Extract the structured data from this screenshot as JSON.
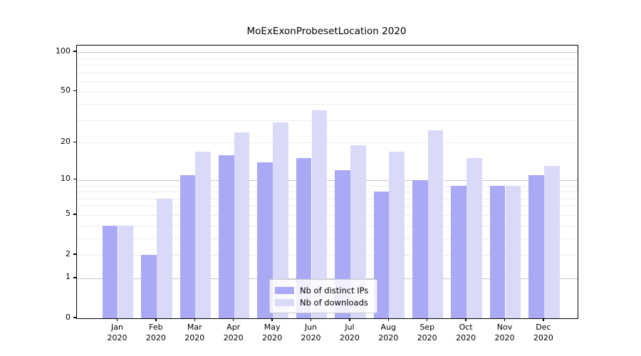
{
  "title": "MoExExonProbesetLocation 2020",
  "legend": {
    "items": [
      {
        "label": "Nb of distinct IPs",
        "series_key": "ips"
      },
      {
        "label": "Nb of downloads",
        "series_key": "downloads"
      }
    ]
  },
  "colors": {
    "ips_bar": "#a9a9f6",
    "downloads_bar": "#d9d9f8",
    "decade_gridline": "#c6c6c6",
    "minor_gridline": "#ececec",
    "axis": "#000000"
  },
  "chart_data": {
    "type": "bar",
    "title": "MoExExonProbesetLocation 2020",
    "scale": "log1p",
    "categories": [
      "Jan",
      "Feb",
      "Mar",
      "Apr",
      "May",
      "Jun",
      "Jul",
      "Aug",
      "Sep",
      "Oct",
      "Nov",
      "Dec"
    ],
    "year_label": "2020",
    "series": [
      {
        "name": "Nb of distinct IPs",
        "values": [
          4,
          2,
          11,
          16,
          14,
          15,
          12,
          8,
          10,
          9,
          9,
          11
        ]
      },
      {
        "name": "Nb of downloads",
        "values": [
          4,
          7,
          17,
          24,
          29,
          36,
          19,
          17,
          25,
          15,
          9,
          13
        ]
      }
    ],
    "ytick_values": [
      0,
      1,
      2,
      5,
      10,
      20,
      50,
      100
    ],
    "minor_gridline_values": [
      3,
      4,
      6,
      7,
      8,
      9,
      30,
      40,
      60,
      70,
      80,
      90
    ],
    "decade_gridline_values": [
      1,
      10,
      100
    ],
    "ylim": [
      0,
      112
    ],
    "xlabel": "",
    "ylabel": "",
    "grid": true,
    "legend_position": "lower center"
  }
}
